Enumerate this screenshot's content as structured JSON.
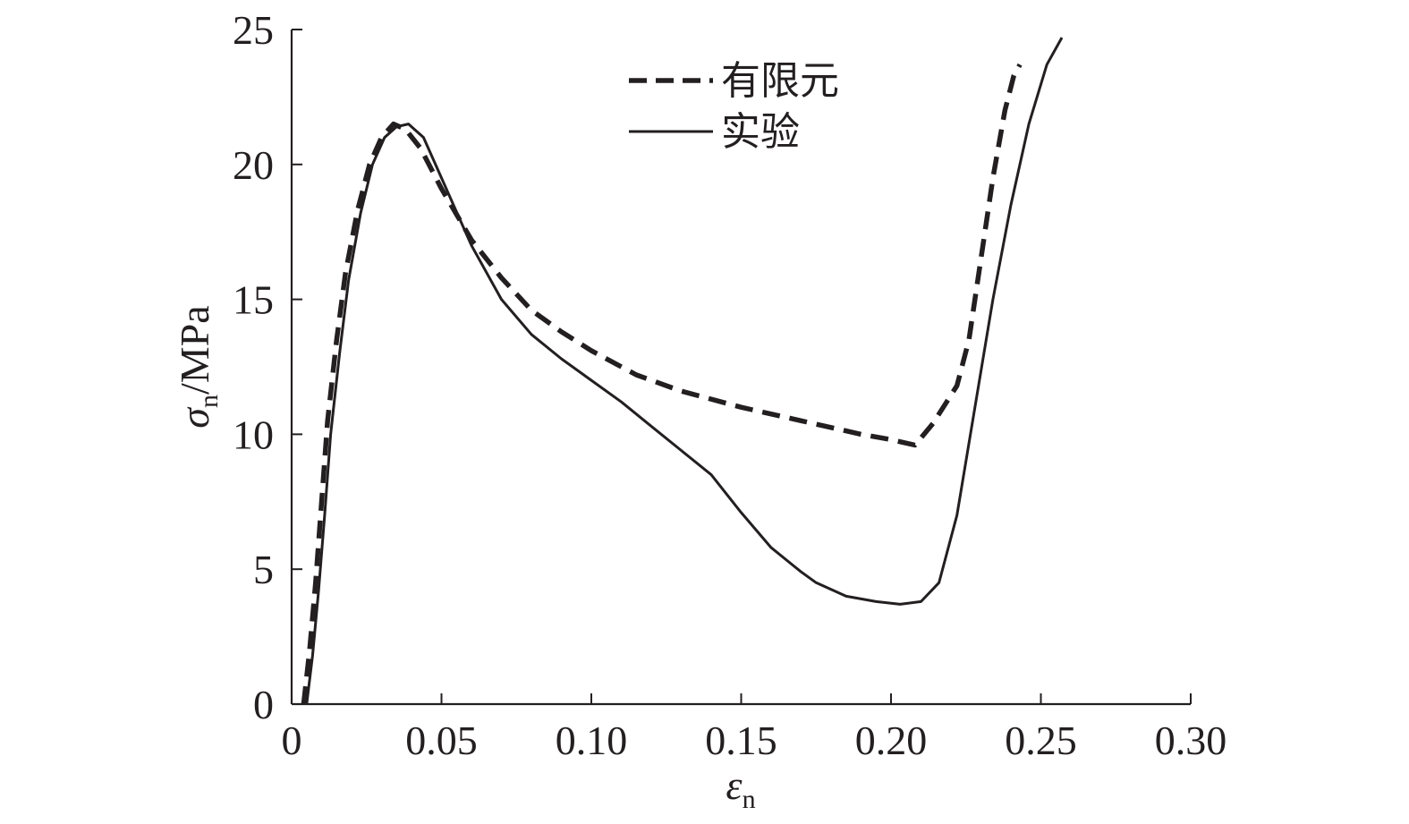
{
  "chart_data": {
    "type": "line",
    "title": "",
    "xlabel": {
      "symbol": "ε",
      "subscript": "n",
      "unit": ""
    },
    "ylabel": {
      "symbol": "σ",
      "subscript": "n",
      "unit": "/MPa"
    },
    "xlim": [
      0,
      0.3
    ],
    "ylim": [
      0,
      25
    ],
    "xticks": [
      0,
      0.05,
      0.1,
      0.15,
      0.2,
      0.25,
      0.3
    ],
    "xtick_labels": [
      "0",
      "0.05",
      "0.10",
      "0.15",
      "0.20",
      "0.25",
      "0.30"
    ],
    "yticks": [
      0,
      5,
      10,
      15,
      20,
      25
    ],
    "ytick_labels": [
      "0",
      "5",
      "10",
      "15",
      "20",
      "25"
    ],
    "grid": false,
    "legend_position": "top-center",
    "series": [
      {
        "name": "有限元",
        "style": "dashed",
        "color": "#231f20",
        "points": [
          [
            0.004,
            0.0
          ],
          [
            0.006,
            2.0
          ],
          [
            0.008,
            4.5
          ],
          [
            0.01,
            7.5
          ],
          [
            0.012,
            10.5
          ],
          [
            0.015,
            13.5
          ],
          [
            0.018,
            16.0
          ],
          [
            0.022,
            18.3
          ],
          [
            0.026,
            20.0
          ],
          [
            0.03,
            21.0
          ],
          [
            0.034,
            21.5
          ],
          [
            0.038,
            21.3
          ],
          [
            0.043,
            20.6
          ],
          [
            0.05,
            19.1
          ],
          [
            0.06,
            17.2
          ],
          [
            0.07,
            15.8
          ],
          [
            0.08,
            14.6
          ],
          [
            0.09,
            13.8
          ],
          [
            0.1,
            13.1
          ],
          [
            0.115,
            12.2
          ],
          [
            0.13,
            11.6
          ],
          [
            0.15,
            11.0
          ],
          [
            0.17,
            10.5
          ],
          [
            0.19,
            10.0
          ],
          [
            0.2,
            9.8
          ],
          [
            0.208,
            9.6
          ],
          [
            0.214,
            10.4
          ],
          [
            0.222,
            11.8
          ],
          [
            0.226,
            13.5
          ],
          [
            0.23,
            16.5
          ],
          [
            0.234,
            19.5
          ],
          [
            0.238,
            22.0
          ],
          [
            0.241,
            23.3
          ],
          [
            0.243,
            23.7
          ]
        ]
      },
      {
        "name": "实验",
        "style": "solid",
        "color": "#231f20",
        "points": [
          [
            0.005,
            0.0
          ],
          [
            0.007,
            1.8
          ],
          [
            0.009,
            4.2
          ],
          [
            0.011,
            7.0
          ],
          [
            0.013,
            10.0
          ],
          [
            0.016,
            13.0
          ],
          [
            0.019,
            15.7
          ],
          [
            0.023,
            18.2
          ],
          [
            0.027,
            20.0
          ],
          [
            0.031,
            21.0
          ],
          [
            0.035,
            21.4
          ],
          [
            0.039,
            21.5
          ],
          [
            0.044,
            21.0
          ],
          [
            0.05,
            19.5
          ],
          [
            0.06,
            17.0
          ],
          [
            0.07,
            15.0
          ],
          [
            0.08,
            13.7
          ],
          [
            0.09,
            12.8
          ],
          [
            0.1,
            12.0
          ],
          [
            0.11,
            11.2
          ],
          [
            0.12,
            10.3
          ],
          [
            0.13,
            9.4
          ],
          [
            0.14,
            8.5
          ],
          [
            0.15,
            7.1
          ],
          [
            0.16,
            5.8
          ],
          [
            0.17,
            4.9
          ],
          [
            0.175,
            4.5
          ],
          [
            0.185,
            4.0
          ],
          [
            0.195,
            3.8
          ],
          [
            0.203,
            3.7
          ],
          [
            0.21,
            3.8
          ],
          [
            0.216,
            4.5
          ],
          [
            0.222,
            7.0
          ],
          [
            0.228,
            11.0
          ],
          [
            0.234,
            15.0
          ],
          [
            0.24,
            18.5
          ],
          [
            0.246,
            21.5
          ],
          [
            0.252,
            23.7
          ],
          [
            0.257,
            24.7
          ]
        ]
      }
    ]
  }
}
